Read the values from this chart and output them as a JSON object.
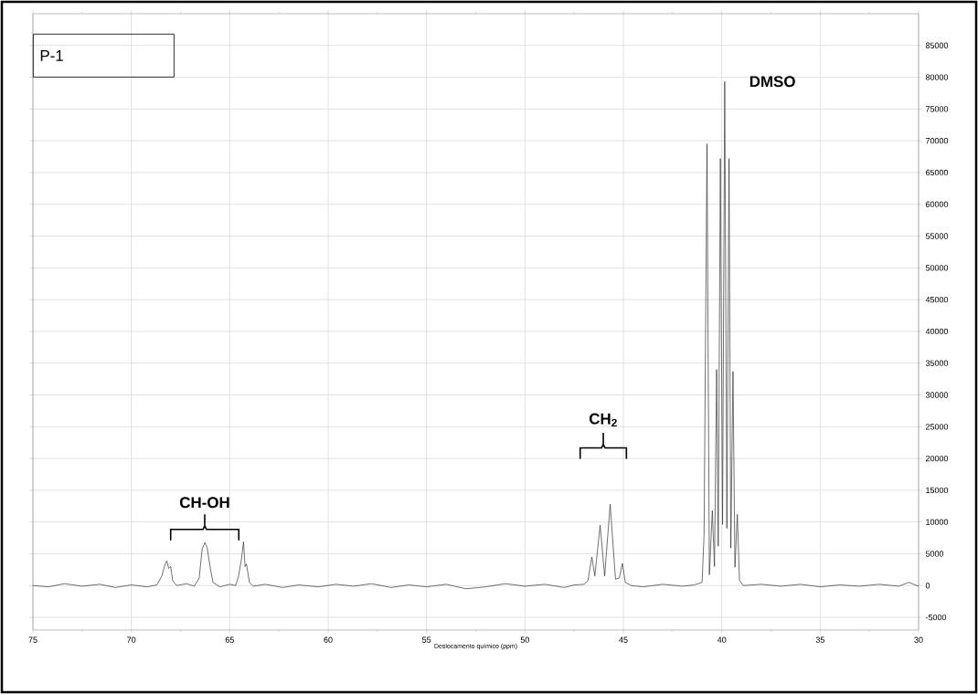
{
  "chart_data": {
    "type": "line",
    "title": "P-1",
    "xlabel": "Deslocamento químico (ppm)",
    "xlim": [
      75,
      30
    ],
    "ylim": [
      -7000,
      90000
    ],
    "xticks": [
      75,
      70,
      65,
      60,
      55,
      50,
      45,
      40,
      35,
      30
    ],
    "yticks": [
      -5000,
      0,
      5000,
      10000,
      15000,
      20000,
      25000,
      30000,
      35000,
      40000,
      45000,
      50000,
      55000,
      60000,
      65000,
      70000,
      75000,
      80000,
      85000
    ],
    "grid": true,
    "marker": "none",
    "line_style": "solid",
    "annotations": [
      "**C**H-OH",
      "**C**H$_{2}$",
      "DMSO"
    ],
    "series": [
      {
        "color": "#333333",
        "x": [
          75,
          74.2,
          73.4,
          72.5,
          71.6,
          70.8,
          70,
          69.2,
          68.7,
          68.45,
          68.3,
          68.2,
          68.1,
          68.0,
          67.9,
          67.7,
          67.2,
          66.8,
          66.55,
          66.4,
          66.26,
          66.15,
          66.0,
          65.85,
          65.5,
          65.0,
          64.7,
          64.55,
          64.4,
          64.3,
          64.22,
          64.15,
          64.0,
          63.8,
          63.2,
          62.3,
          61.5,
          60.5,
          59.6,
          58.7,
          57.8,
          56.8,
          55.9,
          55,
          54,
          53,
          52,
          51,
          50,
          49,
          48,
          47.5,
          47,
          46.8,
          46.6,
          46.45,
          46.18,
          45.95,
          45.67,
          45.4,
          45.2,
          45.05,
          44.9,
          44.6,
          44,
          43,
          42,
          41.4,
          41.0,
          40.9,
          40.75,
          40.63,
          40.48,
          40.37,
          40.26,
          40.18,
          40.07,
          39.96,
          39.85,
          39.74,
          39.63,
          39.54,
          39.43,
          39.33,
          39.21,
          39.1,
          38.9,
          38,
          37,
          36,
          35,
          34,
          33,
          32,
          31,
          30.5,
          30
        ],
        "values": [
          0,
          -200,
          300,
          -100,
          200,
          -300,
          100,
          -200,
          100,
          1500,
          3200,
          3900,
          2700,
          3000,
          800,
          0,
          300,
          -100,
          1200,
          5800,
          6800,
          6000,
          3000,
          500,
          -200,
          200,
          0,
          1500,
          4200,
          6900,
          3000,
          3400,
          500,
          -100,
          200,
          -300,
          100,
          -200,
          200,
          -100,
          300,
          -300,
          100,
          -200,
          200,
          -500,
          -200,
          300,
          -100,
          200,
          -300,
          100,
          200,
          800,
          4500,
          1500,
          9500,
          1500,
          12800,
          1000,
          1200,
          3500,
          500,
          0,
          -200,
          200,
          -100,
          100,
          500,
          8000,
          69500,
          1700,
          11800,
          3000,
          34000,
          6200,
          67200,
          9600,
          79300,
          9000,
          67200,
          5900,
          33700,
          2900,
          11200,
          800,
          0,
          200,
          -100,
          200,
          -200,
          100,
          -100,
          200,
          -100,
          500,
          -100
        ]
      }
    ]
  }
}
